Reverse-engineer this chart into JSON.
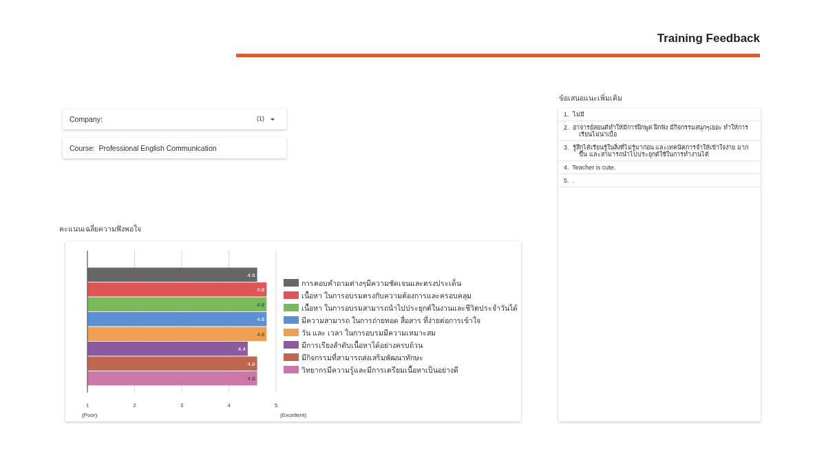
{
  "chart_data": [
    {
      "type": "other",
      "title": "Training Feedback",
      "annotations": [
        "Company:",
        "(1)",
        "Course:  Professional English Communication"
      ]
    },
    {
      "type": "bar",
      "orientation": "horizontal",
      "title": "คะแนนเฉลี่ยความพึงพอใจ",
      "categories": [
        null
      ],
      "series": [
        {
          "name": "การตอบคำถามต่างๆมีความชัดเจนและตรงประเด็น",
          "color": "#666666",
          "values": [
            4.6
          ]
        },
        {
          "name": "เนื้อหา ในการอบรมตรงกับความต้องการและครอบคลุม",
          "color": "#e05555",
          "values": [
            4.8
          ]
        },
        {
          "name": "เนื้อหา ในการอบรมสามารถนำไปประยุกต์ในงานและชีวิตประจำวันได้",
          "color": "#76bb5a",
          "values": [
            4.8
          ]
        },
        {
          "name": "มีความสามารถ ในการถ่ายทอด สื่อสาร ที่ง่ายต่อการเข้าใจ",
          "color": "#5b8fd6",
          "values": [
            4.8
          ]
        },
        {
          "name": "วัน และ เวลา ในการอบรมมีความเหมาะสม",
          "color": "#f0a050",
          "values": [
            4.8
          ]
        },
        {
          "name": "มีการเรียงลำดับเนื้อหาได้อย่างครบถ้วน",
          "color": "#8d5ba0",
          "values": [
            4.4
          ]
        },
        {
          "name": "มีกิจกรรมที่สามารถส่งเสริมพัฒนาทักษะ",
          "color": "#c0654f",
          "values": [
            4.6
          ]
        },
        {
          "name": "วิทยากรมีความรู้และมีการเตรียมเนื้อหาเป็นอย่างดี",
          "color": "#cc77aa",
          "values": [
            4.6
          ]
        }
      ],
      "xlim": [
        1,
        5
      ],
      "xticks": [
        1,
        2,
        3,
        4,
        5
      ],
      "grid": "x",
      "legend": "right",
      "data_labels": true,
      "tick_labels": "x",
      "annotations": [
        "(Poor)",
        "(Excellent)"
      ]
    },
    {
      "type": "other",
      "title": "ข้อเสนอแนะเพิ่มเติม",
      "annotations": [
        "1.  ไม่มี",
        "2.  อาจารย์สอนดีทำให้มีการฝึกพูด ฝึกฟัง มีกิจกรรมสนุกๆเยอะ ทำให้การเรียนไม่น่าเบื่อ",
        "3.  รู้สึกได้เรียนรู้ในสิ่งที่ไม่รู้มาก่อน และเทคนิคการจำให้เข้าใจง่าย มากขึ้น และสามารถนำไปประยุกต์ใช้ในการทำงานได้",
        "4.  Teacher is cute.",
        "5.  ."
      ]
    }
  ]
}
